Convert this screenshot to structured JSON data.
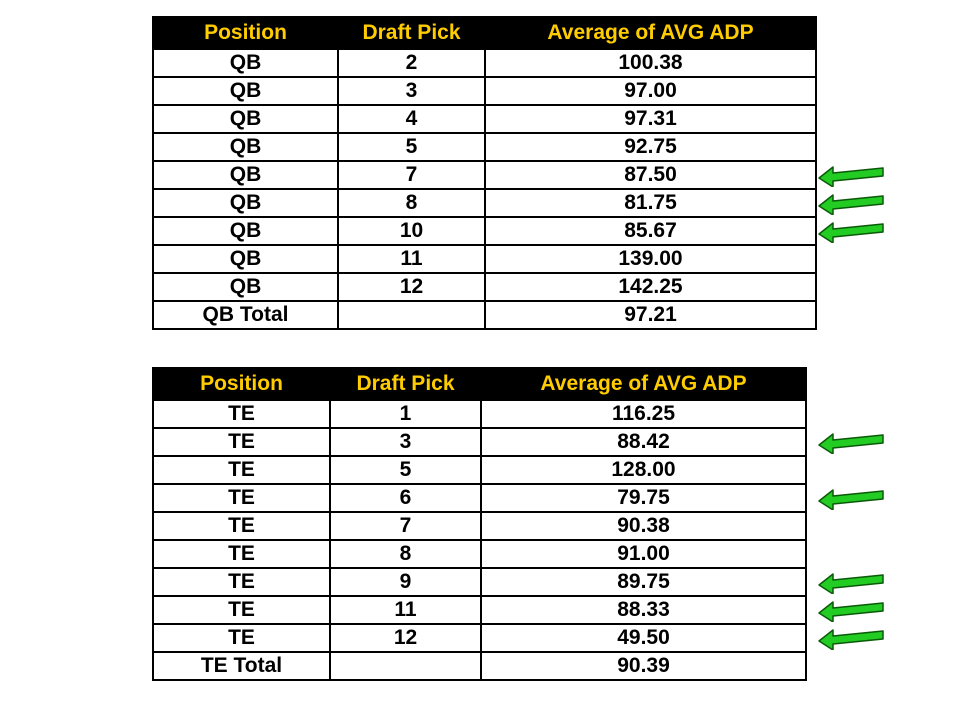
{
  "qb_table": {
    "headers": [
      "Position",
      "Draft Pick",
      "Average of AVG ADP"
    ],
    "rows": [
      [
        "QB",
        "2",
        "100.38"
      ],
      [
        "QB",
        "3",
        "97.00"
      ],
      [
        "QB",
        "4",
        "97.31"
      ],
      [
        "QB",
        "5",
        "92.75"
      ],
      [
        "QB",
        "7",
        "87.50"
      ],
      [
        "QB",
        "8",
        "81.75"
      ],
      [
        "QB",
        "10",
        "85.67"
      ],
      [
        "QB",
        "11",
        "139.00"
      ],
      [
        "QB",
        "12",
        "142.25"
      ],
      [
        "QB Total",
        "",
        "97.21"
      ]
    ],
    "highlighted_draft_picks": [
      "7",
      "8",
      "10"
    ]
  },
  "te_table": {
    "headers": [
      "Position",
      "Draft Pick",
      "Average of AVG ADP"
    ],
    "rows": [
      [
        "TE",
        "1",
        "116.25"
      ],
      [
        "TE",
        "3",
        "88.42"
      ],
      [
        "TE",
        "5",
        "128.00"
      ],
      [
        "TE",
        "6",
        "79.75"
      ],
      [
        "TE",
        "7",
        "90.38"
      ],
      [
        "TE",
        "8",
        "91.00"
      ],
      [
        "TE",
        "9",
        "89.75"
      ],
      [
        "TE",
        "11",
        "88.33"
      ],
      [
        "TE",
        "12",
        "49.50"
      ],
      [
        "TE Total",
        "",
        "90.39"
      ]
    ],
    "highlighted_draft_picks": [
      "3",
      "6",
      "9",
      "11",
      "12"
    ]
  },
  "colors": {
    "header_bg": "#000000",
    "header_text": "#ffcc00",
    "cell_text": "#000000",
    "arrow_fill": "#22cc22",
    "arrow_stroke": "#0a5a0a"
  },
  "icons": {
    "arrow": "left-arrow-icon"
  }
}
